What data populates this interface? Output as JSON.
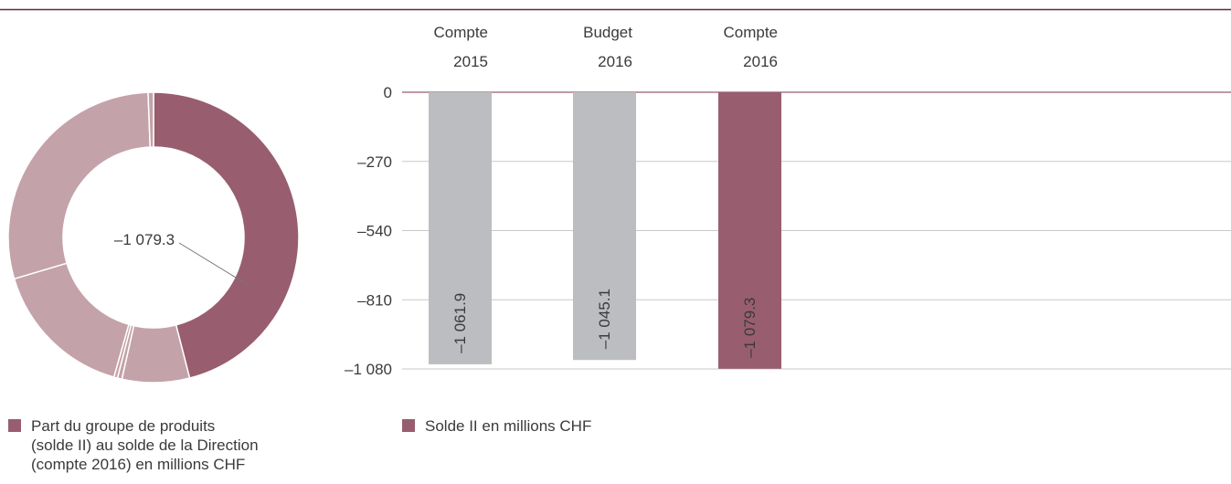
{
  "colors": {
    "accent": "#985e6f",
    "accent_light": "#c4a2aa",
    "bar_gray": "#bcbdc0",
    "top_rule": "#5a2a3a",
    "grid": "#c8c8c8",
    "text": "#3a3a3a"
  },
  "legend": {
    "donut_label": "Part du groupe de produits\n(solde II) au solde de la Direction\n(compte 2016) en millions CHF",
    "bars_label": "Solde II en millions CHF"
  },
  "chart_data": [
    {
      "type": "pie",
      "donut": true,
      "center_label": "–1 079.3",
      "highlight_index": 0,
      "slices": [
        {
          "value": 46.0,
          "color": "#985e6f"
        },
        {
          "value": 7.5,
          "color": "#c4a2aa"
        },
        {
          "value": 0.5,
          "color": "#c4a2aa"
        },
        {
          "value": 0.4,
          "color": "#c4a2aa"
        },
        {
          "value": 16.0,
          "color": "#c4a2aa"
        },
        {
          "value": 29.0,
          "color": "#c4a2aa"
        },
        {
          "value": 0.6,
          "color": "#c4a2aa"
        }
      ]
    },
    {
      "type": "bar",
      "categories": [
        [
          "Compte",
          "2015"
        ],
        [
          "Budget",
          "2016"
        ],
        [
          "Compte",
          "2016"
        ]
      ],
      "values": [
        -1061.9,
        -1045.1,
        -1079.3
      ],
      "value_labels": [
        "–1 061.9",
        "–1 045.1",
        "–1 079.3"
      ],
      "bar_colors": [
        "#bcbdc0",
        "#bcbdc0",
        "#985e6f"
      ],
      "yticks": [
        0,
        -270,
        -540,
        -810,
        -1080
      ],
      "ytick_labels": [
        "0",
        "–270",
        "–540",
        "–810",
        "–1 080"
      ],
      "ylim": [
        -1080,
        0
      ],
      "grid": true
    }
  ]
}
